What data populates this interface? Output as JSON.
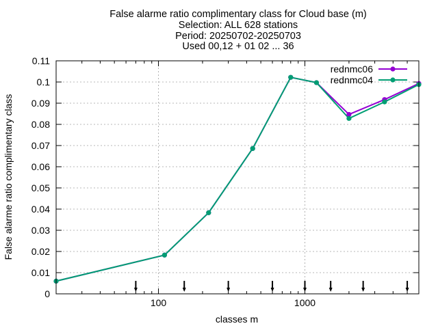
{
  "chart_data": {
    "type": "line",
    "title_lines": [
      "False alarme ratio complimentary class  for Cloud base (m)",
      "Selection: ALL    628 stations",
      "Period: 20250702-20250703",
      "Used 00,12 + 01 02 ... 36"
    ],
    "xlabel": "classes m",
    "ylabel": "False alarme ratio complimentary class",
    "x_scale": "log",
    "xlim": [
      20,
      6000
    ],
    "ylim": [
      0,
      0.11
    ],
    "x_ticks": [
      100,
      1000
    ],
    "x_tick_labels": [
      "100",
      "1000"
    ],
    "y_ticks": [
      0,
      0.01,
      0.02,
      0.03,
      0.04,
      0.05,
      0.06,
      0.07,
      0.08,
      0.09,
      0.1,
      0.11
    ],
    "y_tick_labels": [
      "0",
      "0.01",
      "0.02",
      "0.03",
      "0.04",
      "0.05",
      "0.06",
      "0.07",
      "0.08",
      "0.09",
      "0.1",
      "0.11"
    ],
    "grid": true,
    "legend_position": "top-right",
    "class_markers": [
      70,
      150,
      300,
      600,
      1000,
      1500,
      2500,
      5000
    ],
    "series": [
      {
        "name": "rednmc06",
        "color": "#9400d3",
        "x": [
          20,
          110,
          220,
          440,
          800,
          1200,
          2000,
          3500,
          6000
        ],
        "y": [
          0.006,
          0.0183,
          0.0383,
          0.0686,
          0.1022,
          0.0997,
          0.0847,
          0.0917,
          0.0993
        ]
      },
      {
        "name": "rednmc04",
        "color": "#009e73",
        "x": [
          20,
          110,
          220,
          440,
          800,
          1200,
          2000,
          3500,
          6000
        ],
        "y": [
          0.006,
          0.0183,
          0.0383,
          0.0686,
          0.1022,
          0.0997,
          0.0828,
          0.0906,
          0.0988
        ]
      }
    ]
  }
}
